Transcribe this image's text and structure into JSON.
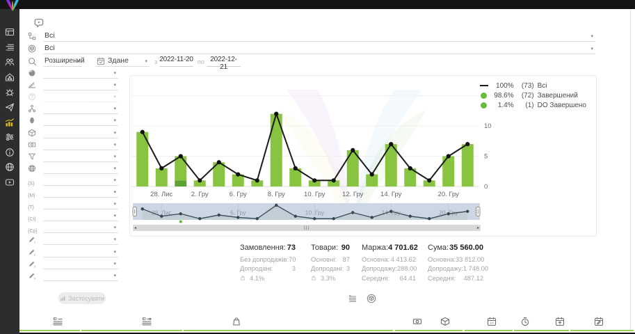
{
  "colors": {
    "bar_green": "#88c440",
    "bar_dark_green": "#5ea232",
    "line_black": "#1a1a1a",
    "legend_dot_green": "#67bd3b",
    "active_sidebar_icon": "#e2c019",
    "navigator_bg": "#ccd7e3",
    "bottom_tab_underline": "#9ccb56"
  },
  "sidebar": {
    "items": [
      {
        "name": "dashboard",
        "icon": "dashboard-icon",
        "active": false
      },
      {
        "name": "orders",
        "icon": "orders-list-icon",
        "active": false
      },
      {
        "name": "customers",
        "icon": "customers-icon",
        "active": false
      },
      {
        "name": "warehouse",
        "icon": "warehouse-icon",
        "active": false
      },
      {
        "name": "integrations",
        "icon": "bug-icon",
        "active": false
      },
      {
        "name": "campaigns",
        "icon": "send-icon",
        "active": false
      },
      {
        "name": "analytics",
        "icon": "analytics-chart-icon",
        "active": true
      },
      {
        "name": "automation",
        "icon": "sliders-icon",
        "active": false
      },
      {
        "name": "info",
        "icon": "info-icon",
        "active": false
      },
      {
        "name": "localization",
        "icon": "globe-icon",
        "active": false
      },
      {
        "name": "tutorials",
        "icon": "video-icon",
        "active": false
      }
    ]
  },
  "header": {
    "hint_icon": "video-hint-icon",
    "status_filter": {
      "icon": "status-tree-icon",
      "value": "Всі"
    },
    "product_filter": {
      "icon": "package-circle-icon",
      "value": "Всі"
    },
    "search_mode": {
      "icon": "search-icon",
      "value": "Розширений"
    },
    "date_type": {
      "icon": "calendar-check-icon",
      "value": "Здане"
    },
    "date_from_label": "з",
    "date_from": "2022-11-20",
    "date_to_label": "по",
    "date_to": "2022-12-21"
  },
  "filter_panel": {
    "rows": [
      {
        "name": "country",
        "icon": "world-filled-icon",
        "value": "",
        "disabled": false
      },
      {
        "name": "level",
        "icon": "level-icon",
        "value": "",
        "disabled": false
      },
      {
        "name": "help",
        "icon": "help-icon",
        "value": "",
        "disabled": true
      },
      {
        "name": "structure",
        "icon": "structure-icon",
        "value": "",
        "disabled": false
      },
      {
        "name": "manager",
        "icon": "person-icon",
        "value": "",
        "disabled": false
      },
      {
        "name": "product",
        "icon": "package-icon",
        "value": "",
        "disabled": false
      },
      {
        "name": "payment",
        "icon": "money-icon",
        "value": "",
        "disabled": false
      },
      {
        "name": "funnel",
        "icon": "funnel-icon",
        "value": "",
        "disabled": false
      },
      {
        "name": "website",
        "icon": "website-globe-icon",
        "value": "",
        "disabled": false
      },
      {
        "name": "utm-source",
        "icon": "utm-source-icon",
        "value": "",
        "disabled": false
      },
      {
        "name": "utm-medium",
        "icon": "utm-medium-icon",
        "value": "",
        "disabled": false
      },
      {
        "name": "utm-term",
        "icon": "utm-term-icon",
        "value": "",
        "disabled": false
      },
      {
        "name": "utm-content",
        "icon": "utm-content-icon",
        "value": "",
        "disabled": false
      },
      {
        "name": "utm-campaign",
        "icon": "utm-campaign-icon",
        "value": "",
        "disabled": false
      },
      {
        "name": "custom-1",
        "icon": "edit-1-icon",
        "value": "",
        "disabled": false
      },
      {
        "name": "custom-2",
        "icon": "edit-2-icon",
        "value": "",
        "disabled": false
      },
      {
        "name": "custom-3",
        "icon": "edit-3-icon",
        "value": "",
        "disabled": false
      },
      {
        "name": "custom-4",
        "icon": "edit-4-icon",
        "value": "",
        "disabled": false
      }
    ],
    "apply_button": {
      "label": "Застосувати",
      "icon": "mini-chart-icon",
      "disabled": true
    }
  },
  "chart_data": {
    "type": "bar-line-combo",
    "series": [
      {
        "name": "Всі",
        "type": "line",
        "color": "#1a1a1a",
        "percent": "100%",
        "count": 73,
        "values": [
          9,
          3,
          5,
          1,
          4,
          2,
          1,
          12,
          3,
          1,
          1,
          6,
          2,
          7,
          3,
          1,
          5,
          7
        ]
      },
      {
        "name": "Завершений",
        "type": "bar",
        "color": "#88c440",
        "percent": "98.6%",
        "count": 72,
        "values": [
          9,
          3,
          4,
          1,
          4,
          2,
          1,
          12,
          3,
          1,
          1,
          6,
          2,
          7,
          3,
          1,
          5,
          7
        ]
      },
      {
        "name": "DO Завершено",
        "type": "bar",
        "color": "#5ea232",
        "percent": "1.4%",
        "count": 1,
        "values": [
          0,
          0,
          1,
          0,
          0,
          0,
          0,
          0,
          0,
          0,
          0,
          0,
          0,
          0,
          0,
          0,
          0,
          0
        ]
      }
    ],
    "x_ticks": [
      {
        "bar_index": 1,
        "label": "28. Лис"
      },
      {
        "bar_index": 3,
        "label": "2. Гру"
      },
      {
        "bar_index": 5,
        "label": "6. Гру"
      },
      {
        "bar_index": 7,
        "label": "8. Гру"
      },
      {
        "bar_index": 9,
        "label": "10. Гру"
      },
      {
        "bar_index": 11,
        "label": "12. Гру"
      },
      {
        "bar_index": 13,
        "label": "14. Гру"
      },
      {
        "bar_index": 16,
        "label": "20. Гру"
      }
    ],
    "y_ticks": [
      0,
      5,
      10
    ],
    "ylim": [
      0,
      17
    ],
    "grid": true,
    "legend_position": "top-right",
    "legend": [
      {
        "marker": "line",
        "percent": "100%",
        "count": "(73)",
        "name": "Всі"
      },
      {
        "marker": "dot",
        "percent": "98.6%",
        "count": "(72)",
        "name": "Завершений"
      },
      {
        "marker": "dot",
        "percent": "1.4%",
        "count": "(1)",
        "name": "DO Завершено"
      }
    ],
    "navigator": {
      "labels": [
        {
          "bar_index": 1,
          "label": "28. Лис"
        },
        {
          "bar_index": 5,
          "label": "6. Гру"
        },
        {
          "bar_index": 9,
          "label": "10. Гру"
        },
        {
          "bar_index": 13,
          "label": "14. Гру"
        },
        {
          "bar_index": 16,
          "label": "20. Гру"
        }
      ],
      "green_marker_bar_index": 2
    }
  },
  "stats": {
    "columns": [
      {
        "label": "Замовлення:",
        "value": "73",
        "rows": [
          {
            "label": "Без допродажів:",
            "value": "70"
          },
          {
            "label": "Допродані:",
            "value": "3"
          },
          {
            "label": "",
            "value": "4.1%",
            "icon": "upsell-rate-icon"
          }
        ]
      },
      {
        "label": "Товари:",
        "value": "90",
        "rows": [
          {
            "label": "Основні:",
            "value": "87"
          },
          {
            "label": "Допродані:",
            "value": "3"
          },
          {
            "label": "",
            "value": "3.3%",
            "icon": "upsell-rate-icon"
          }
        ]
      },
      {
        "label": "Маржа:",
        "value": "4 701.62",
        "rows": [
          {
            "label": "Основна:",
            "value": "4 413.62"
          },
          {
            "label": "Допродажу:",
            "value": "288.00"
          },
          {
            "label": "Середня:",
            "value": "64.41"
          }
        ]
      },
      {
        "label": "Сума:",
        "value": "35 560.00",
        "rows": [
          {
            "label": "Основна:",
            "value": "33 812.00"
          },
          {
            "label": "Допродажу:",
            "value": "1 748.00"
          },
          {
            "label": "Середня:",
            "value": "487.12"
          }
        ]
      }
    ]
  },
  "view_toggles": [
    {
      "name": "list-view",
      "icon": "list-view-icon"
    },
    {
      "name": "cube-view",
      "icon": "cube-view-icon"
    }
  ],
  "bottom_bar": {
    "tabs": [
      {
        "name": "id-list",
        "icon": "id-list-icon"
      },
      {
        "name": "id-range",
        "icon": "id-range-icon"
      },
      {
        "name": "bag",
        "icon": "bag-icon"
      },
      {
        "name": "money",
        "icon": "money-icon"
      },
      {
        "name": "product-cube",
        "icon": "package-icon"
      },
      {
        "name": "calendar-date",
        "icon": "calendar-num-icon"
      },
      {
        "name": "time",
        "icon": "clock-icon"
      },
      {
        "name": "calendar-export",
        "icon": "calendar-up-icon"
      },
      {
        "name": "calendar-edit",
        "icon": "calendar-edit-icon"
      }
    ]
  }
}
